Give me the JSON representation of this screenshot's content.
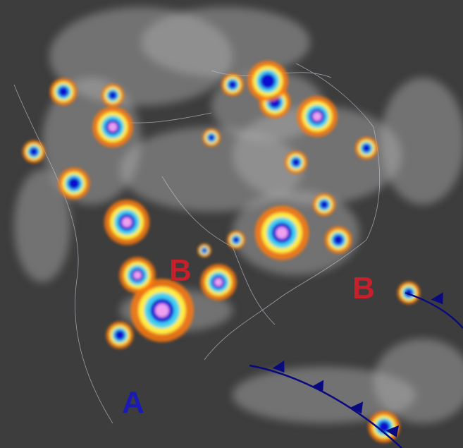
{
  "map": {
    "pressure_systems": [
      {
        "type": "low",
        "label": "B",
        "color": "#c8202a"
      },
      {
        "type": "low",
        "label": "B",
        "color": "#c8202a"
      },
      {
        "type": "high",
        "label": "A",
        "color": "#1a1ab4"
      }
    ],
    "fronts": [
      {
        "type": "cold-front",
        "color": "#0a0a80"
      },
      {
        "type": "cold-front",
        "color": "#0a0a80"
      }
    ],
    "colors": {
      "background": "#3d3d3d",
      "cloud": "#b4b4b4",
      "cold_top_orange": "#ff7a10",
      "cold_top_yellow": "#ffee40",
      "cold_top_cyan": "#40d0f0",
      "cold_top_blue": "#1010d0",
      "cold_top_pink": "#f0a0f0"
    }
  }
}
